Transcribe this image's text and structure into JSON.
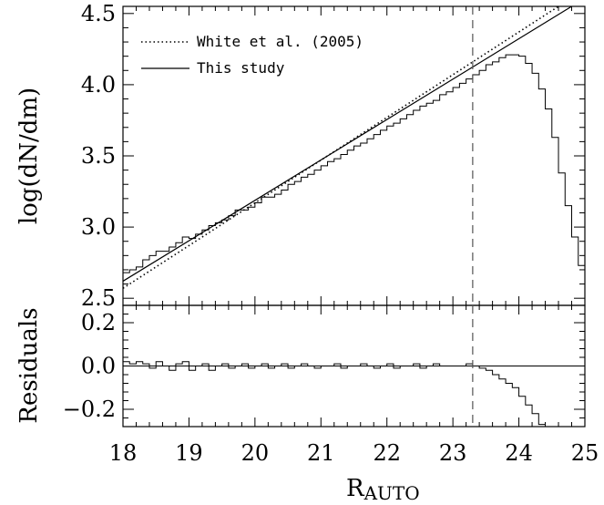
{
  "chart_data": {
    "type": "line",
    "xlabel": "R",
    "xlabel_sub": "AUTO",
    "xlim": [
      18,
      25
    ],
    "x_ticks": [
      "18",
      "19",
      "20",
      "21",
      "22",
      "23",
      "24",
      "25"
    ],
    "panels": [
      {
        "name": "main",
        "ylabel": "log(dN/dm)",
        "ylim": [
          2.45,
          4.55
        ],
        "y_ticks": [
          "2.5",
          "3.0",
          "3.5",
          "4.0",
          "4.5"
        ],
        "legend": {
          "placement": "top-left",
          "entries": [
            {
              "label": "White et al. (2005)",
              "style": "dotted"
            },
            {
              "label": "This study",
              "style": "solid"
            }
          ]
        },
        "series": [
          {
            "name": "White et al. (2005)",
            "kind": "line",
            "style": "dotted",
            "x": [
              18.0,
              24.6
            ],
            "y": [
              2.57,
              4.55
            ]
          },
          {
            "name": "This study",
            "kind": "line",
            "style": "solid",
            "x": [
              18.0,
              24.8
            ],
            "y": [
              2.62,
              4.55
            ]
          },
          {
            "kind": "step",
            "bin_width": 0.1,
            "bin_starts": [
              18.0,
              18.1,
              18.2,
              18.3,
              18.4,
              18.5,
              18.6,
              18.7,
              18.8,
              18.9,
              19.0,
              19.1,
              19.2,
              19.3,
              19.4,
              19.5,
              19.6,
              19.7,
              19.8,
              19.9,
              20.0,
              20.1,
              20.2,
              20.3,
              20.4,
              20.5,
              20.6,
              20.7,
              20.8,
              20.9,
              21.0,
              21.1,
              21.2,
              21.3,
              21.4,
              21.5,
              21.6,
              21.7,
              21.8,
              21.9,
              22.0,
              22.1,
              22.2,
              22.3,
              22.4,
              22.5,
              22.6,
              22.7,
              22.8,
              22.9,
              23.0,
              23.1,
              23.2,
              23.3,
              23.4,
              23.5,
              23.6,
              23.7,
              23.8,
              23.9,
              24.0,
              24.1,
              24.2,
              24.3,
              24.4,
              24.5,
              24.6,
              24.7,
              24.8,
              24.9
            ],
            "values": [
              2.68,
              2.7,
              2.72,
              2.77,
              2.8,
              2.83,
              2.83,
              2.86,
              2.89,
              2.93,
              2.92,
              2.95,
              2.98,
              3.01,
              3.03,
              3.05,
              3.08,
              3.12,
              3.12,
              3.14,
              3.17,
              3.21,
              3.21,
              3.23,
              3.26,
              3.3,
              3.32,
              3.35,
              3.37,
              3.4,
              3.43,
              3.46,
              3.48,
              3.51,
              3.54,
              3.57,
              3.59,
              3.62,
              3.65,
              3.68,
              3.71,
              3.73,
              3.76,
              3.79,
              3.82,
              3.85,
              3.87,
              3.89,
              3.93,
              3.95,
              3.98,
              4.01,
              4.04,
              4.07,
              4.1,
              4.14,
              4.16,
              4.19,
              4.21,
              4.21,
              4.2,
              4.15,
              4.08,
              3.97,
              3.83,
              3.63,
              3.38,
              3.15,
              2.93,
              2.73
            ]
          }
        ],
        "cutoff_x": 23.3
      },
      {
        "name": "residuals",
        "ylabel": "Residuals",
        "ylim": [
          -0.28,
          0.28
        ],
        "y_ticks": [
          "0.2",
          "0.0",
          "−0.2"
        ],
        "zero_line": true,
        "series": [
          {
            "kind": "step",
            "bin_width": 0.1,
            "bin_starts": [
              18.0,
              18.1,
              18.2,
              18.3,
              18.4,
              18.5,
              18.6,
              18.7,
              18.8,
              18.9,
              19.0,
              19.1,
              19.2,
              19.3,
              19.4,
              19.5,
              19.6,
              19.7,
              19.8,
              19.9,
              20.0,
              20.1,
              20.2,
              20.3,
              20.4,
              20.5,
              20.6,
              20.7,
              20.8,
              20.9,
              21.0,
              21.1,
              21.2,
              21.3,
              21.4,
              21.5,
              21.6,
              21.7,
              21.8,
              21.9,
              22.0,
              22.1,
              22.2,
              22.3,
              22.4,
              22.5,
              22.6,
              22.7,
              22.8,
              22.9,
              23.0,
              23.1,
              23.2,
              23.3,
              23.4,
              23.5,
              23.6,
              23.7,
              23.8,
              23.9,
              24.0,
              24.1,
              24.2,
              24.3
            ],
            "values": [
              0.02,
              0.01,
              0.02,
              0.01,
              -0.01,
              0.02,
              0.0,
              -0.02,
              0.01,
              0.02,
              -0.02,
              0.0,
              0.01,
              -0.02,
              0.0,
              0.01,
              -0.01,
              0.0,
              0.01,
              -0.01,
              0.0,
              0.01,
              -0.01,
              0.0,
              0.01,
              -0.01,
              0.0,
              0.01,
              0.0,
              -0.01,
              0.0,
              0.0,
              0.01,
              -0.01,
              0.0,
              0.0,
              0.01,
              0.0,
              -0.01,
              0.0,
              0.01,
              -0.01,
              0.0,
              0.0,
              0.01,
              -0.01,
              0.0,
              0.01,
              0.0,
              0.0,
              0.0,
              0.0,
              0.01,
              0.0,
              -0.01,
              -0.02,
              -0.04,
              -0.06,
              -0.08,
              -0.1,
              -0.14,
              -0.18,
              -0.22,
              -0.27
            ]
          }
        ],
        "cutoff_x": 23.3
      }
    ]
  }
}
